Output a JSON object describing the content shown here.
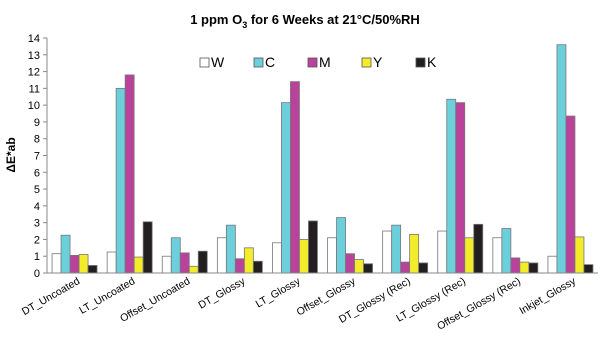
{
  "chart_data": {
    "type": "bar",
    "title_main": "1 ppm O",
    "title_sub": "3",
    "title_rest": " for 6 Weeks at 21°C/50%RH",
    "ylabel": "ΔE*ab",
    "xlabel": "",
    "ylim": [
      0,
      14
    ],
    "yticks": [
      0,
      1,
      2,
      3,
      4,
      5,
      6,
      7,
      8,
      9,
      10,
      11,
      12,
      13,
      14
    ],
    "grid": false,
    "legend_position": "top-center",
    "categories": [
      "DT_Uncoated",
      "LT_Uncoated",
      "Offset_Uncoated",
      "DT_Glossy",
      "LT_Glossy",
      "Offset_Glossy",
      "DT_Glossy (Rec)",
      "LT_Glossy (Rec)",
      "Offset_Glossy (Rec)",
      "Inkjet_Glossy"
    ],
    "series": [
      {
        "name": "W",
        "color": "#ffffff",
        "values": [
          1.15,
          1.25,
          1.0,
          2.1,
          1.8,
          2.1,
          2.5,
          2.5,
          2.1,
          1.0
        ]
      },
      {
        "name": "C",
        "color": "#6ccfdc",
        "values": [
          2.25,
          11.0,
          2.1,
          2.85,
          10.15,
          3.3,
          2.85,
          10.35,
          2.65,
          13.6
        ]
      },
      {
        "name": "M",
        "color": "#b9439b",
        "values": [
          1.05,
          11.8,
          1.2,
          0.85,
          11.4,
          1.15,
          0.65,
          10.15,
          0.9,
          9.35
        ]
      },
      {
        "name": "Y",
        "color": "#f2ec2a",
        "values": [
          1.1,
          0.95,
          0.4,
          1.5,
          2.0,
          0.8,
          2.3,
          2.1,
          0.65,
          2.15
        ]
      },
      {
        "name": "K",
        "color": "#231f20",
        "values": [
          0.45,
          3.05,
          1.3,
          0.7,
          3.1,
          0.55,
          0.6,
          2.9,
          0.6,
          0.5
        ]
      }
    ]
  }
}
